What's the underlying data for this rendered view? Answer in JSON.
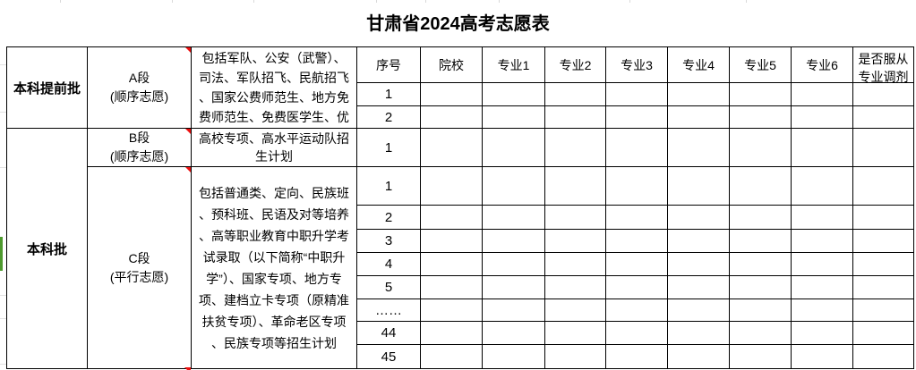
{
  "title": "甘肃省2024高考志愿表",
  "table": {
    "batches": [
      {
        "label": "本科提前批"
      },
      {
        "label": "本科批"
      }
    ],
    "segments": [
      {
        "label": "A段",
        "sub": "(顺序志愿)",
        "comment": true,
        "desc_lines": [
          "包括军队、公安（武警）、",
          "司法、军队招飞、民航招飞",
          "、国家公费师范生、地方免",
          "费师范生、免费医学生、优"
        ]
      },
      {
        "label": "B段",
        "sub": "(顺序志愿)",
        "comment": true,
        "desc_lines": [
          "高校专项、高水平运动队招",
          "生计划"
        ]
      },
      {
        "label": "C段",
        "sub": "(平行志愿)",
        "comment": true,
        "desc_lines": [
          "包括普通类、定向、民族班",
          "、预科班、民语及对等培养",
          "、高等职业教育中职升学考",
          "试录取（以下简称“中职升",
          "学”）、国家专项、地方专",
          "项、建档立卡专项（原精准",
          "扶贫专项）、革命老区专项",
          "、民族专项等招生计划"
        ]
      }
    ],
    "headers": [
      "序号",
      "院校",
      "专业1",
      "专业2",
      "专业3",
      "专业4",
      "专业5",
      "专业6"
    ],
    "last_header_lines": [
      "是否服从",
      "专业调剂"
    ],
    "seq": [
      "1",
      "2",
      "1",
      "1",
      "2",
      "3",
      "4",
      "5",
      "……",
      "44",
      "45"
    ],
    "empty_cols": 8
  },
  "colors": {
    "border": "#000000",
    "comment_red": "#ee1111",
    "selection_green": "#4e9a2e",
    "gridline_gray": "#d9d9d9"
  }
}
